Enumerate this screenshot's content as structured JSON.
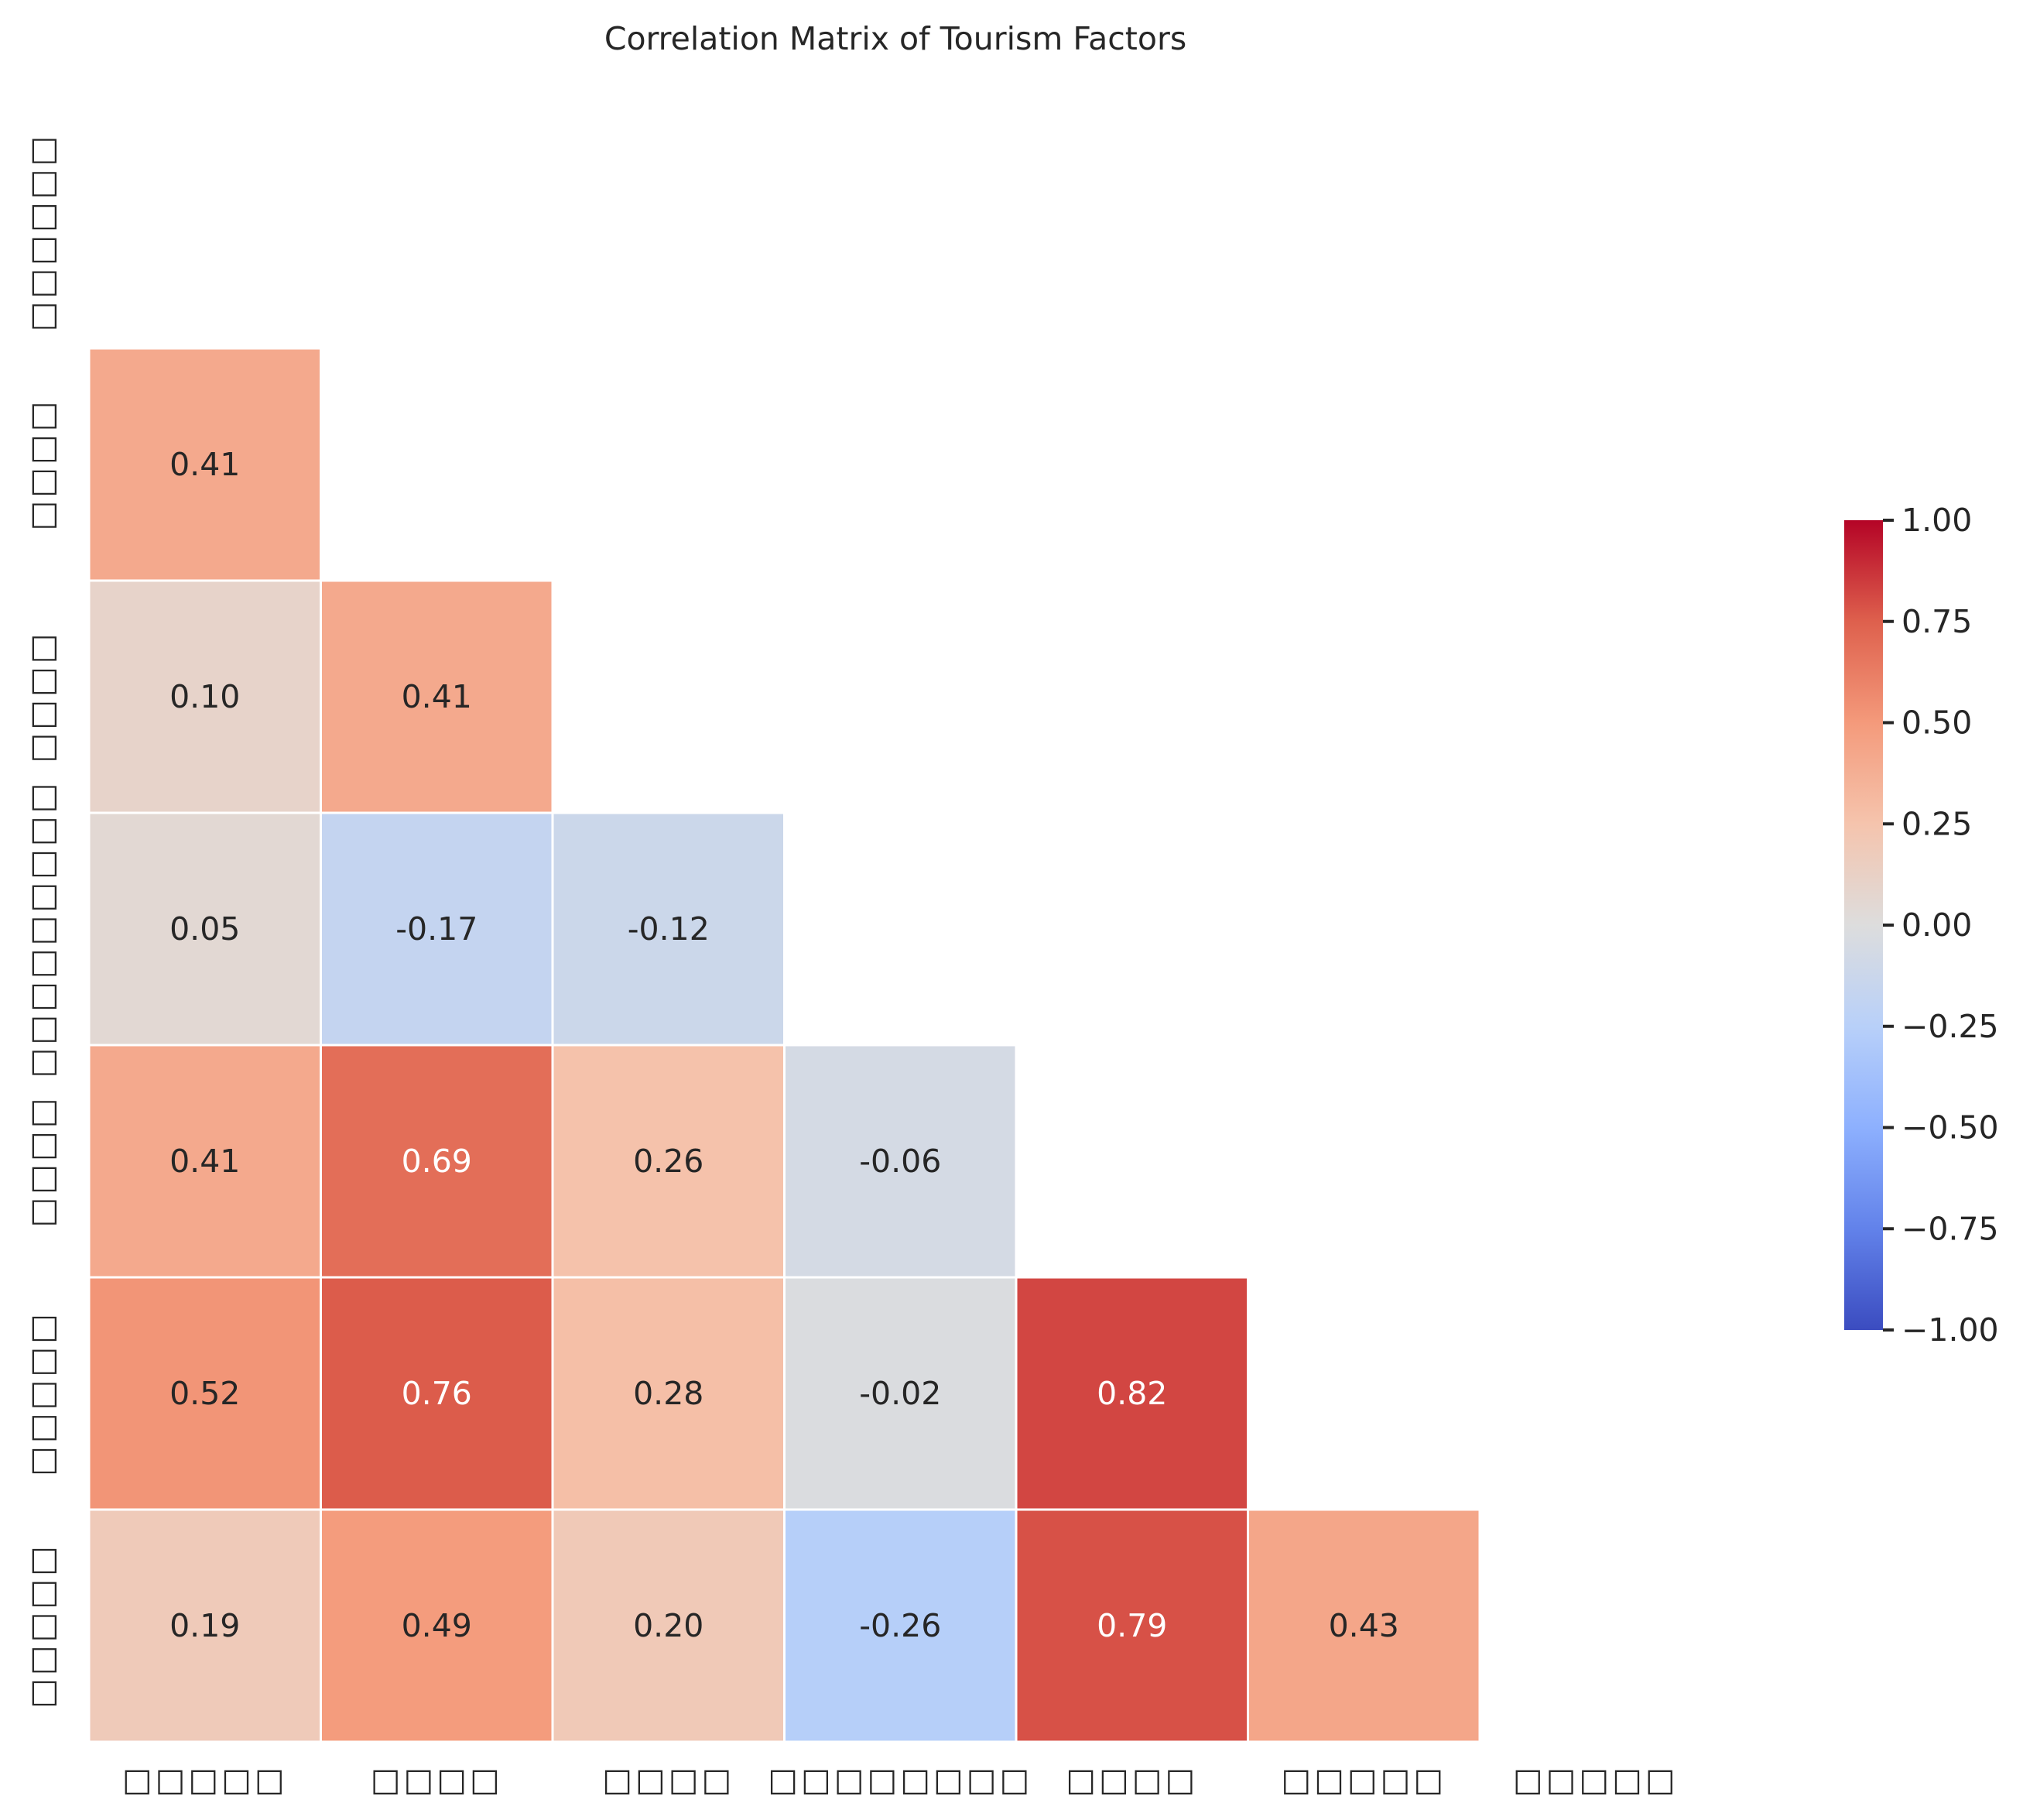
{
  "chart_data": {
    "type": "heatmap",
    "title": "Correlation Matrix of Tourism Factors",
    "row_labels": [
      "□□□□□□",
      "□□□□",
      "□□□□",
      "□□□□□□□□□",
      "□□□□",
      "□□□□□",
      "□□□□□"
    ],
    "col_labels": [
      "□□□□□",
      "□□□□",
      "□□□□",
      "□□□□□□□□",
      "□□□□",
      "□□□□□",
      "□□□□□"
    ],
    "cells": [
      {
        "row": 1,
        "col": 0,
        "value": 0.41
      },
      {
        "row": 2,
        "col": 0,
        "value": 0.1
      },
      {
        "row": 2,
        "col": 1,
        "value": 0.41
      },
      {
        "row": 3,
        "col": 0,
        "value": 0.05
      },
      {
        "row": 3,
        "col": 1,
        "value": -0.17
      },
      {
        "row": 3,
        "col": 2,
        "value": -0.12
      },
      {
        "row": 4,
        "col": 0,
        "value": 0.41
      },
      {
        "row": 4,
        "col": 1,
        "value": 0.69
      },
      {
        "row": 4,
        "col": 2,
        "value": 0.26
      },
      {
        "row": 4,
        "col": 3,
        "value": -0.06
      },
      {
        "row": 5,
        "col": 0,
        "value": 0.52
      },
      {
        "row": 5,
        "col": 1,
        "value": 0.76
      },
      {
        "row": 5,
        "col": 2,
        "value": 0.28
      },
      {
        "row": 5,
        "col": 3,
        "value": -0.02
      },
      {
        "row": 5,
        "col": 4,
        "value": 0.82
      },
      {
        "row": 6,
        "col": 0,
        "value": 0.19
      },
      {
        "row": 6,
        "col": 1,
        "value": 0.49
      },
      {
        "row": 6,
        "col": 2,
        "value": 0.2
      },
      {
        "row": 6,
        "col": 3,
        "value": -0.26
      },
      {
        "row": 6,
        "col": 4,
        "value": 0.79
      },
      {
        "row": 6,
        "col": 5,
        "value": 0.43
      }
    ],
    "mask": "upper-triangle-and-diagonal",
    "colormap": "coolwarm",
    "vmin": -1.0,
    "vmax": 1.0,
    "value_format": "2 decimals",
    "colorbar": {
      "ticks": [
        "1.00",
        "0.75",
        "0.50",
        "0.25",
        "0.00",
        "−0.25",
        "−0.50",
        "−0.75",
        "−1.00"
      ],
      "tick_values": [
        1.0,
        0.75,
        0.5,
        0.25,
        0.0,
        -0.25,
        -0.5,
        -0.75,
        -1.0
      ]
    },
    "colors": {
      "low": "#3b4cc0",
      "mid": "#dddddd",
      "high": "#b40426",
      "text_dark": "#262626",
      "text_light": "#ffffff",
      "cell_border": "#ffffff"
    }
  }
}
